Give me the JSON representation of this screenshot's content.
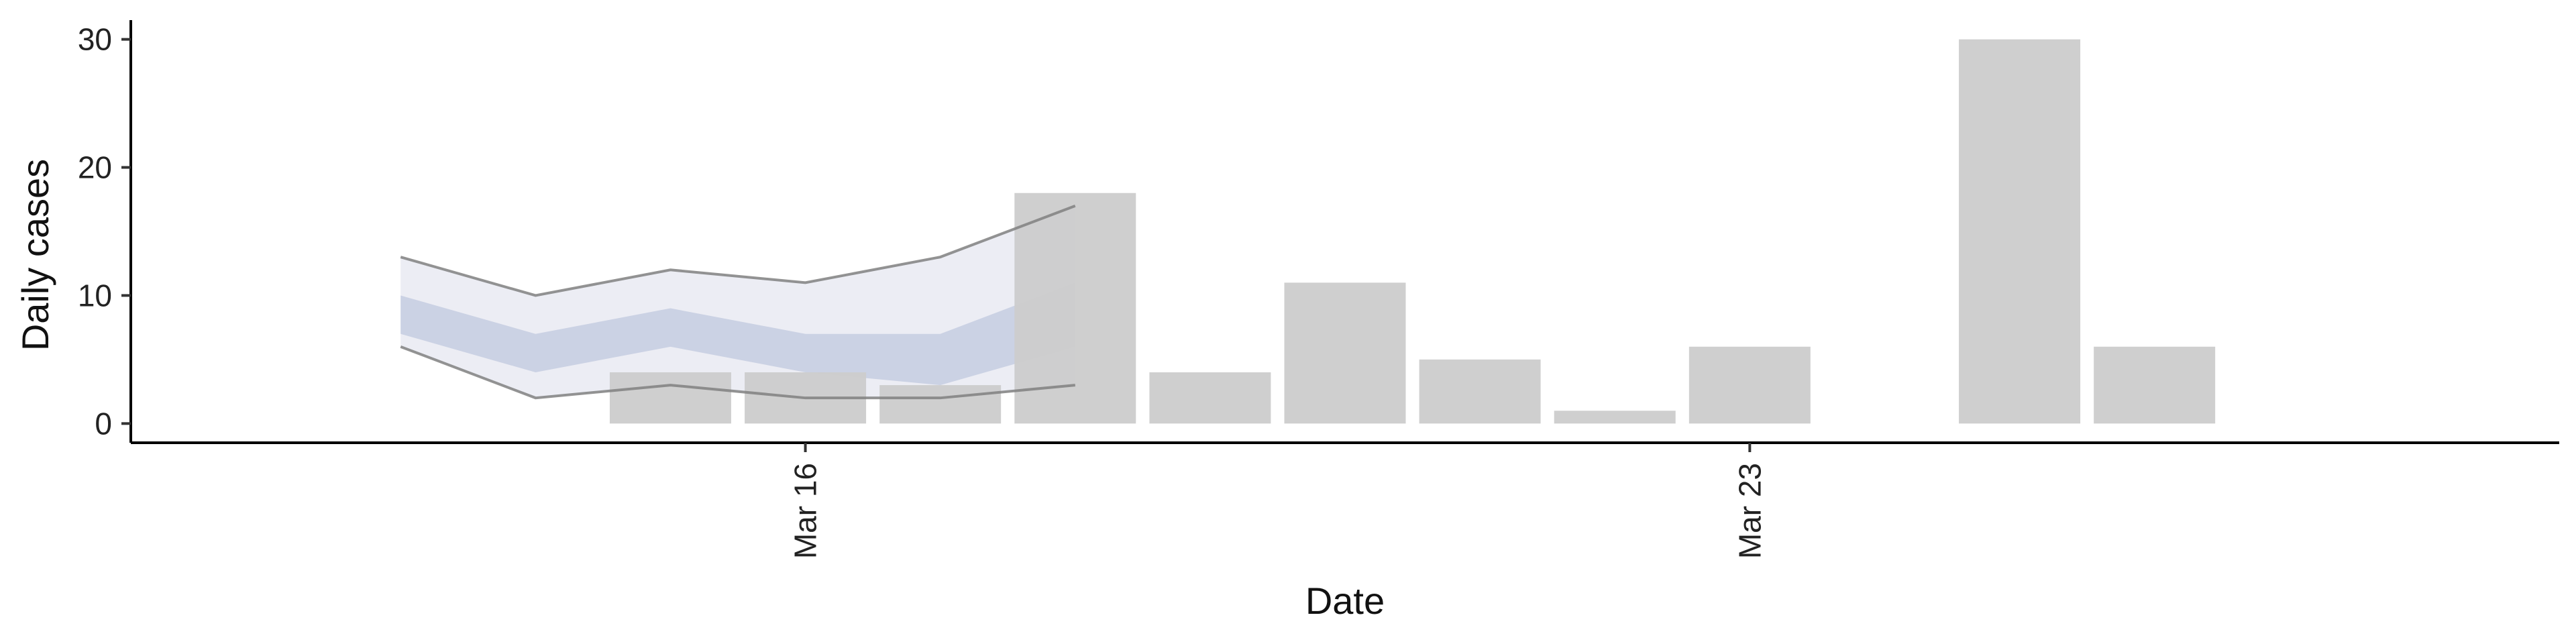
{
  "chart_data": {
    "type": "bar",
    "title": "",
    "xlabel": "Date",
    "ylabel": "Daily cases",
    "ylim": [
      -1.5,
      31.5
    ],
    "xlim": [
      "2020-03-11",
      "2020-03-29"
    ],
    "y_ticks": [
      0,
      10,
      20,
      30
    ],
    "x_ticks": [
      {
        "date": "2020-03-16",
        "label": "Mar 16"
      },
      {
        "date": "2020-03-23",
        "label": "Mar 23"
      }
    ],
    "grid": false,
    "legend": "none",
    "bars": {
      "color": "#cccccc",
      "dates": [
        "2020-03-15",
        "2020-03-16",
        "2020-03-17",
        "2020-03-18",
        "2020-03-19",
        "2020-03-20",
        "2020-03-21",
        "2020-03-22",
        "2020-03-23",
        "2020-03-25",
        "2020-03-26"
      ],
      "values": [
        4,
        4,
        3,
        18,
        4,
        11,
        5,
        1,
        6,
        30,
        6
      ]
    },
    "estimate": {
      "dates": [
        "2020-03-13",
        "2020-03-14",
        "2020-03-15",
        "2020-03-16",
        "2020-03-17",
        "2020-03-18"
      ],
      "outer_lower": [
        6,
        2,
        3,
        2,
        2,
        3
      ],
      "outer_upper": [
        13,
        10,
        12,
        11,
        13,
        17
      ],
      "inner_lower": [
        7,
        4,
        6,
        4,
        3,
        6
      ],
      "inner_upper": [
        10,
        7,
        9,
        7,
        7,
        11
      ],
      "outer_color": "#e9eaf2",
      "inner_color": "#c6cde0",
      "line_color": "#808080"
    }
  }
}
